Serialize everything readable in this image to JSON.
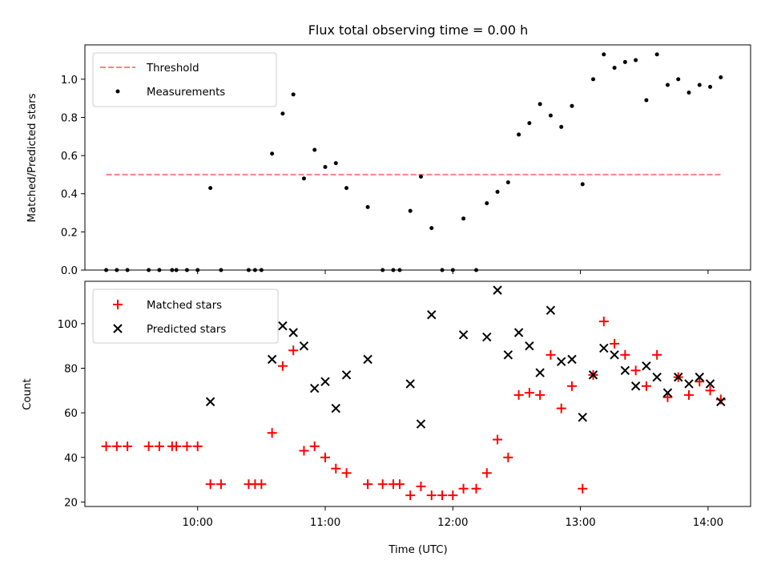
{
  "chart_data": [
    {
      "type": "scatter",
      "title": "Flux total observing time = 0.00 h",
      "xlabel": "",
      "ylabel": "Matched/Predicted stars",
      "xlim": [
        "09:07",
        "14:20"
      ],
      "ylim": [
        0,
        1.18
      ],
      "yticks": [
        "0.0",
        "0.2",
        "0.4",
        "0.6",
        "0.8",
        "1.0"
      ],
      "legend": {
        "position": "top-left",
        "entries": [
          "Threshold",
          "Measurements"
        ]
      },
      "threshold": {
        "name": "Threshold",
        "color": "#ff8080",
        "style": "dashed",
        "value": 0.5,
        "x_start": "09:17",
        "x_end": "14:07"
      },
      "series": [
        {
          "name": "Measurements",
          "marker": "dot",
          "color": "#000000",
          "points": [
            [
              "09:17",
              0.0
            ],
            [
              "09:22",
              0.0
            ],
            [
              "09:27",
              0.0
            ],
            [
              "09:37",
              0.0
            ],
            [
              "09:42",
              0.0
            ],
            [
              "09:48",
              0.0
            ],
            [
              "09:50",
              0.0
            ],
            [
              "09:55",
              0.0
            ],
            [
              "10:00",
              0.0
            ],
            [
              "10:06",
              0.43
            ],
            [
              "10:11",
              0.0
            ],
            [
              "10:24",
              0.0
            ],
            [
              "10:27",
              0.0
            ],
            [
              "10:30",
              0.0
            ],
            [
              "10:35",
              0.61
            ],
            [
              "10:40",
              0.82
            ],
            [
              "10:45",
              0.92
            ],
            [
              "10:50",
              0.48
            ],
            [
              "10:55",
              0.63
            ],
            [
              "11:00",
              0.54
            ],
            [
              "11:05",
              0.56
            ],
            [
              "11:10",
              0.43
            ],
            [
              "11:20",
              0.33
            ],
            [
              "11:27",
              0.0
            ],
            [
              "11:32",
              0.0
            ],
            [
              "11:35",
              0.0
            ],
            [
              "11:40",
              0.31
            ],
            [
              "11:45",
              0.49
            ],
            [
              "11:50",
              0.22
            ],
            [
              "11:55",
              0.0
            ],
            [
              "12:00",
              0.0
            ],
            [
              "12:05",
              0.27
            ],
            [
              "12:11",
              0.0
            ],
            [
              "12:16",
              0.35
            ],
            [
              "12:21",
              0.41
            ],
            [
              "12:26",
              0.46
            ],
            [
              "12:31",
              0.71
            ],
            [
              "12:36",
              0.77
            ],
            [
              "12:41",
              0.87
            ],
            [
              "12:46",
              0.81
            ],
            [
              "12:51",
              0.75
            ],
            [
              "12:56",
              0.86
            ],
            [
              "13:01",
              0.45
            ],
            [
              "13:06",
              1.0
            ],
            [
              "13:11",
              1.13
            ],
            [
              "13:16",
              1.06
            ],
            [
              "13:21",
              1.09
            ],
            [
              "13:26",
              1.1
            ],
            [
              "13:31",
              0.89
            ],
            [
              "13:36",
              1.13
            ],
            [
              "13:41",
              0.97
            ],
            [
              "13:46",
              1.0
            ],
            [
              "13:51",
              0.93
            ],
            [
              "13:56",
              0.97
            ],
            [
              "14:01",
              0.96
            ],
            [
              "14:06",
              1.01
            ]
          ]
        }
      ]
    },
    {
      "type": "scatter",
      "title": "",
      "xlabel": "Time (UTC)",
      "ylabel": "Count",
      "xlim": [
        "09:07",
        "14:20"
      ],
      "ylim": [
        18,
        119
      ],
      "xticks": [
        "10:00",
        "11:00",
        "12:00",
        "13:00",
        "14:00"
      ],
      "yticks": [
        "20",
        "40",
        "60",
        "80",
        "100"
      ],
      "legend": {
        "position": "top-left",
        "entries": [
          "Matched stars",
          "Predicted stars"
        ]
      },
      "series": [
        {
          "name": "Matched stars",
          "marker": "plus",
          "color": "#ff0000",
          "points": [
            [
              "09:17",
              45
            ],
            [
              "09:22",
              45
            ],
            [
              "09:27",
              45
            ],
            [
              "09:37",
              45
            ],
            [
              "09:42",
              45
            ],
            [
              "09:48",
              45
            ],
            [
              "09:50",
              45
            ],
            [
              "09:55",
              45
            ],
            [
              "10:00",
              45
            ],
            [
              "10:06",
              28
            ],
            [
              "10:11",
              28
            ],
            [
              "10:24",
              28
            ],
            [
              "10:27",
              28
            ],
            [
              "10:30",
              28
            ],
            [
              "10:35",
              51
            ],
            [
              "10:40",
              81
            ],
            [
              "10:45",
              88
            ],
            [
              "10:50",
              43
            ],
            [
              "10:55",
              45
            ],
            [
              "11:00",
              40
            ],
            [
              "11:05",
              35
            ],
            [
              "11:10",
              33
            ],
            [
              "11:20",
              28
            ],
            [
              "11:27",
              28
            ],
            [
              "11:32",
              28
            ],
            [
              "11:35",
              28
            ],
            [
              "11:40",
              23
            ],
            [
              "11:45",
              27
            ],
            [
              "11:50",
              23
            ],
            [
              "11:55",
              23
            ],
            [
              "12:00",
              23
            ],
            [
              "12:05",
              26
            ],
            [
              "12:11",
              26
            ],
            [
              "12:16",
              33
            ],
            [
              "12:21",
              48
            ],
            [
              "12:26",
              40
            ],
            [
              "12:31",
              68
            ],
            [
              "12:36",
              69
            ],
            [
              "12:41",
              68
            ],
            [
              "12:46",
              86
            ],
            [
              "12:51",
              62
            ],
            [
              "12:56",
              72
            ],
            [
              "13:01",
              26
            ],
            [
              "13:06",
              77
            ],
            [
              "13:11",
              101
            ],
            [
              "13:16",
              91
            ],
            [
              "13:21",
              86
            ],
            [
              "13:26",
              79
            ],
            [
              "13:31",
              72
            ],
            [
              "13:36",
              86
            ],
            [
              "13:41",
              67
            ],
            [
              "13:46",
              76
            ],
            [
              "13:51",
              68
            ],
            [
              "13:56",
              74
            ],
            [
              "14:01",
              70
            ],
            [
              "14:06",
              66
            ]
          ]
        },
        {
          "name": "Predicted stars",
          "marker": "x",
          "color": "#000000",
          "points": [
            [
              "10:06",
              65
            ],
            [
              "10:35",
              84
            ],
            [
              "10:40",
              99
            ],
            [
              "10:45",
              96
            ],
            [
              "10:50",
              90
            ],
            [
              "10:55",
              71
            ],
            [
              "11:00",
              74
            ],
            [
              "11:05",
              62
            ],
            [
              "11:10",
              77
            ],
            [
              "11:20",
              84
            ],
            [
              "11:40",
              73
            ],
            [
              "11:45",
              55
            ],
            [
              "11:50",
              104
            ],
            [
              "12:05",
              95
            ],
            [
              "12:16",
              94
            ],
            [
              "12:21",
              115
            ],
            [
              "12:26",
              86
            ],
            [
              "12:31",
              96
            ],
            [
              "12:36",
              90
            ],
            [
              "12:41",
              78
            ],
            [
              "12:46",
              106
            ],
            [
              "12:51",
              83
            ],
            [
              "12:56",
              84
            ],
            [
              "13:01",
              58
            ],
            [
              "13:06",
              77
            ],
            [
              "13:11",
              89
            ],
            [
              "13:16",
              86
            ],
            [
              "13:21",
              79
            ],
            [
              "13:26",
              72
            ],
            [
              "13:31",
              81
            ],
            [
              "13:36",
              76
            ],
            [
              "13:41",
              69
            ],
            [
              "13:46",
              76
            ],
            [
              "13:51",
              73
            ],
            [
              "13:56",
              76
            ],
            [
              "14:01",
              73
            ],
            [
              "14:06",
              65
            ]
          ]
        }
      ]
    }
  ]
}
